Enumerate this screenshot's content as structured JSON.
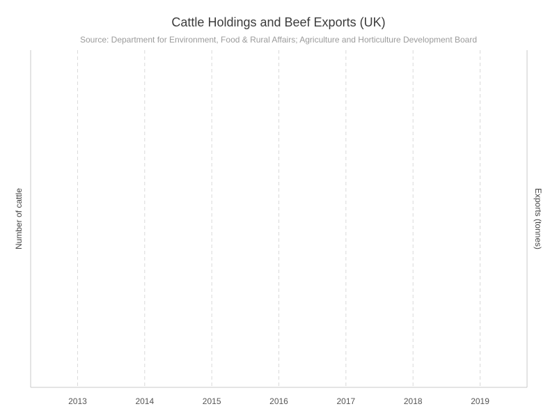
{
  "chart_data": {
    "type": "line",
    "title": "Cattle Holdings and Beef Exports (UK)",
    "subtitle": "Source: Department for Environment, Food & Rural Affairs; Agriculture and Horticulture Development Board",
    "xlabel": "",
    "ylabel_left": "Number of cattle",
    "ylabel_right": "Exports (tonnes)",
    "categories": [
      "2013",
      "2014",
      "2015",
      "2016",
      "2017",
      "2018",
      "2019"
    ],
    "xlim": [
      2012.3,
      2019.7
    ],
    "series": [],
    "grid": {
      "x": true,
      "y": false,
      "style": "dashed"
    },
    "legend": "none",
    "colors": {
      "title": "#3b3b3b",
      "subtitle": "#9a9a9a",
      "axis_text": "#555555",
      "axis_line": "#c8c8c8",
      "grid": "#d9d9d9"
    }
  }
}
